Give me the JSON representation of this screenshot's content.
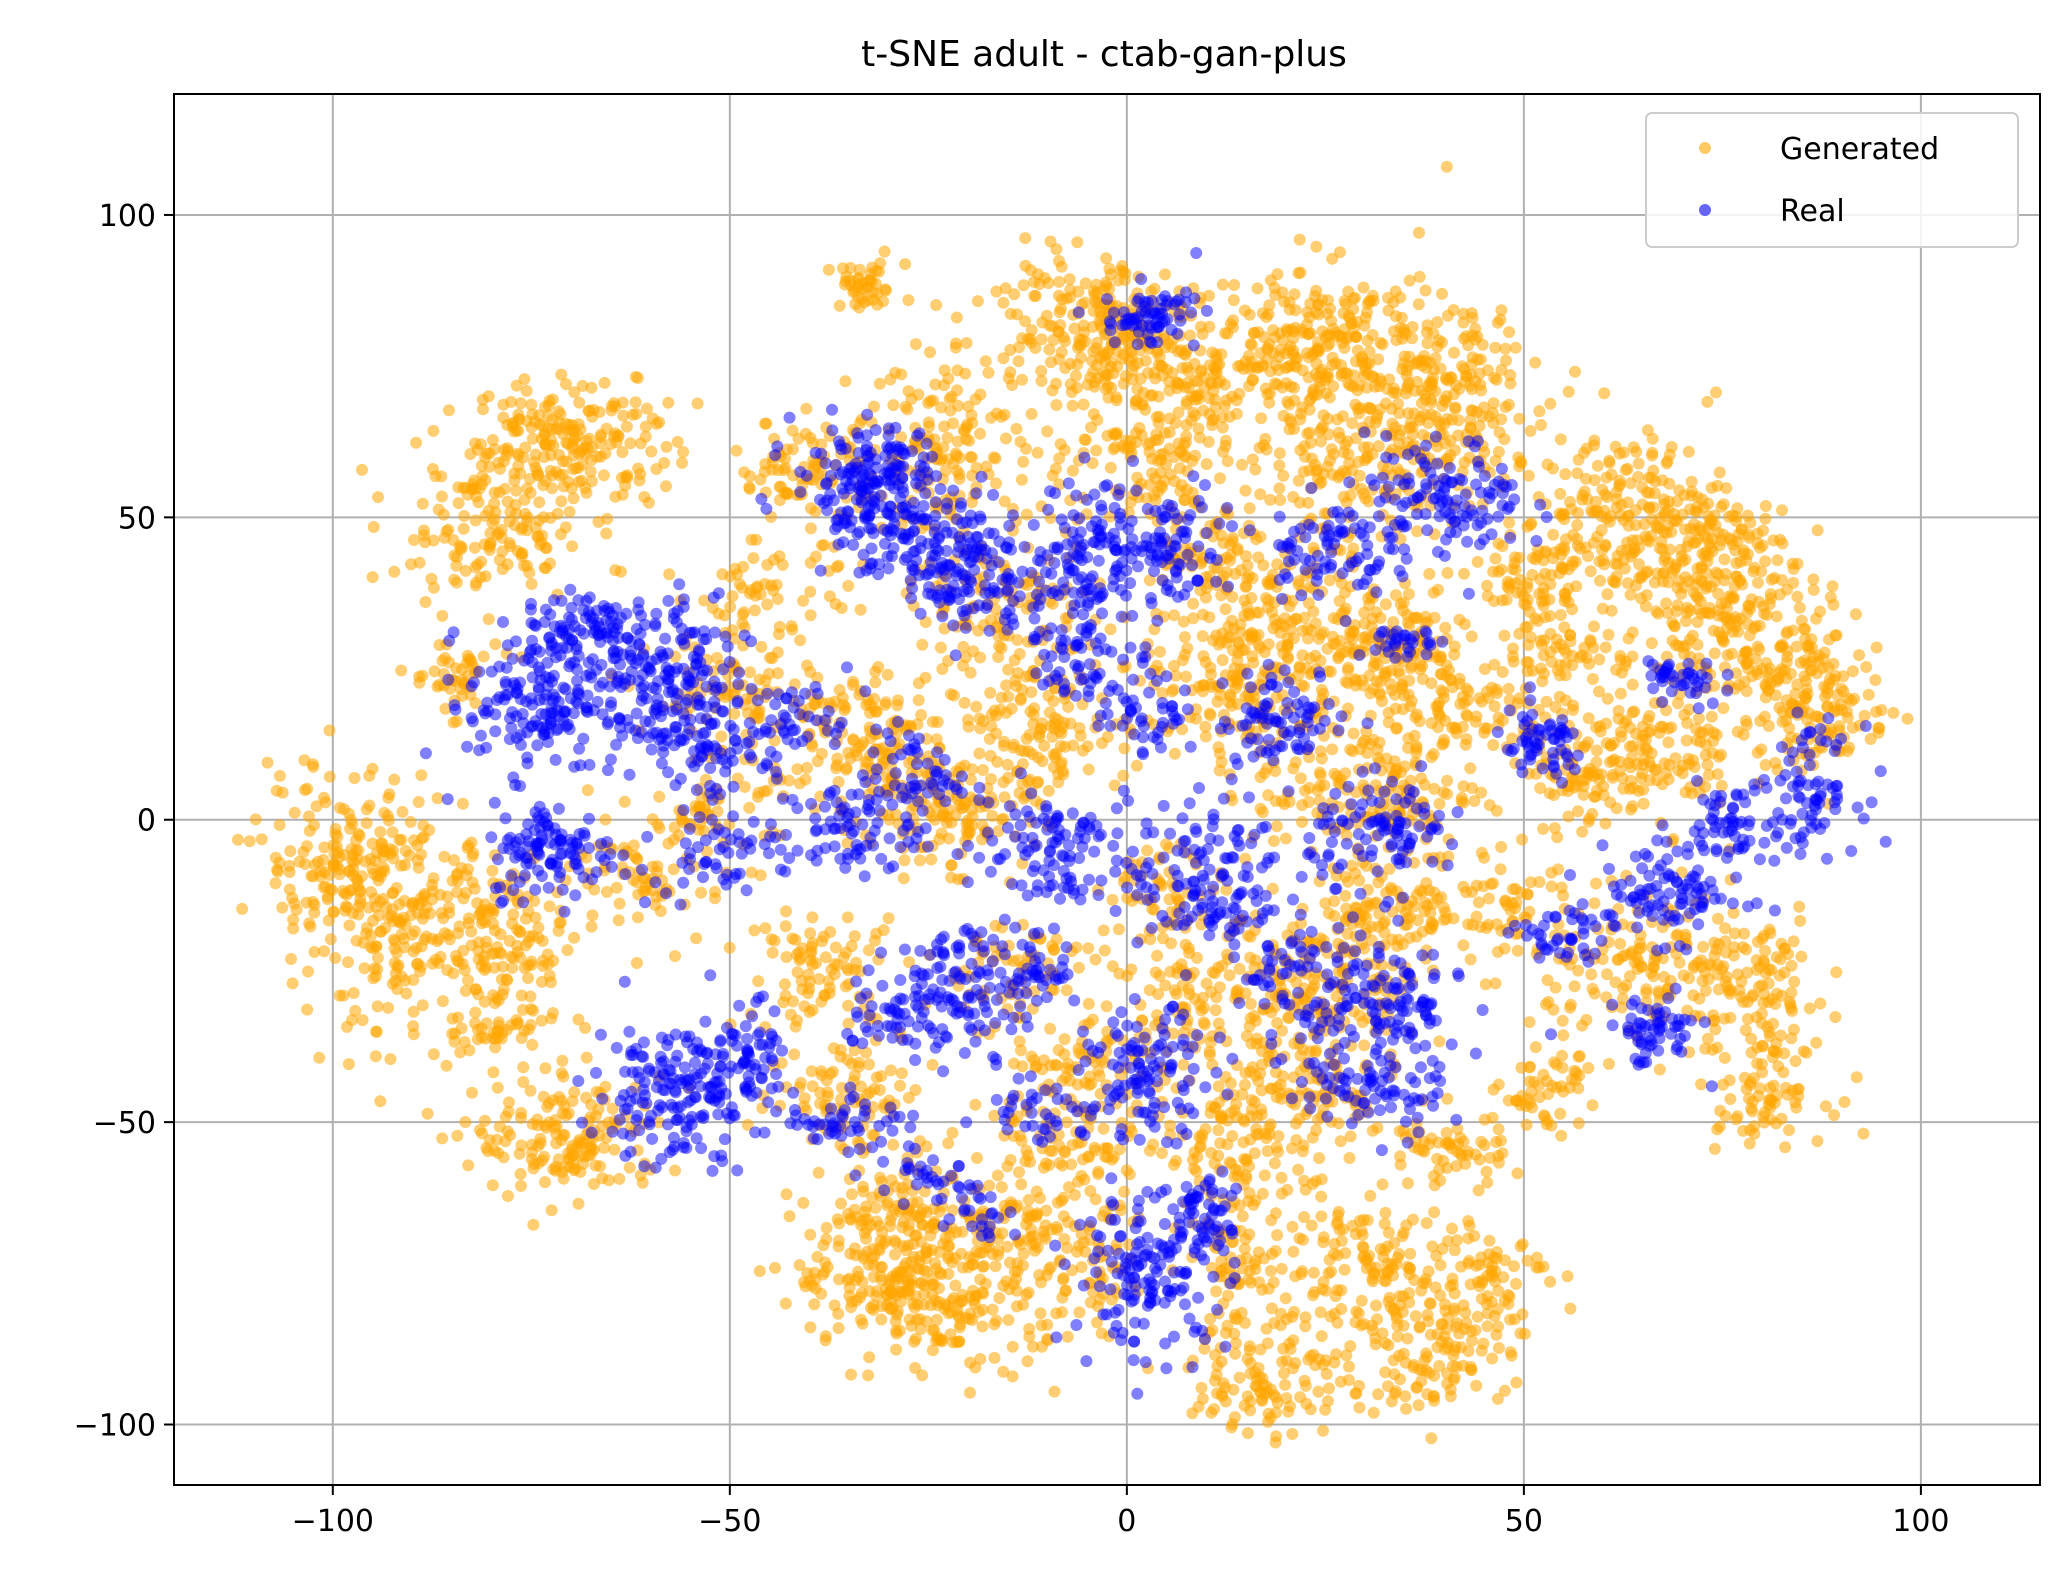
{
  "chart_data": {
    "type": "scatter",
    "title": "t-SNE adult - ctab-gan-plus",
    "xlabel": "",
    "ylabel": "",
    "xlim": [
      -120,
      115
    ],
    "ylim": [
      -110,
      120
    ],
    "xticks": [
      -100,
      -50,
      0,
      50,
      100
    ],
    "yticks": [
      -100,
      -50,
      0,
      50,
      100
    ],
    "xtick_labels": [
      "−100",
      "−50",
      "0",
      "50",
      "100"
    ],
    "ytick_labels": [
      "−100",
      "−50",
      "0",
      "50",
      "100"
    ],
    "grid": true,
    "legend_position": "upper right",
    "series": [
      {
        "name": "Generated",
        "color": "#FFA500",
        "clusters": [
          {
            "cx": -33,
            "cy": 88,
            "sx": 2.5,
            "sy": 2,
            "n": 45
          },
          {
            "cx": -70,
            "cy": 63,
            "sx": 6,
            "sy": 5,
            "n": 200
          },
          {
            "cx": -80,
            "cy": 48,
            "sx": 6,
            "sy": 6,
            "n": 150
          },
          {
            "cx": -85,
            "cy": 24,
            "sx": 3,
            "sy": 3,
            "n": 45
          },
          {
            "cx": -98,
            "cy": -6,
            "sx": 6,
            "sy": 7,
            "n": 160
          },
          {
            "cx": -92,
            "cy": -20,
            "sx": 6,
            "sy": 8,
            "n": 180
          },
          {
            "cx": -78,
            "cy": -20,
            "sx": 5,
            "sy": 8,
            "n": 140
          },
          {
            "cx": -80,
            "cy": -35,
            "sx": 3,
            "sy": 2,
            "n": 30
          },
          {
            "cx": -70,
            "cy": -53,
            "sx": 6,
            "sy": 5,
            "n": 160
          },
          {
            "cx": -40,
            "cy": 58,
            "sx": 5,
            "sy": 4,
            "n": 90
          },
          {
            "cx": -45,
            "cy": 38,
            "sx": 5,
            "sy": 4,
            "n": 60
          },
          {
            "cx": -50,
            "cy": 20,
            "sx": 5,
            "sy": 5,
            "n": 80
          },
          {
            "cx": -35,
            "cy": 15,
            "sx": 5,
            "sy": 6,
            "n": 100
          },
          {
            "cx": -22,
            "cy": 62,
            "sx": 6,
            "sy": 7,
            "n": 150
          },
          {
            "cx": -15,
            "cy": 35,
            "sx": 6,
            "sy": 6,
            "n": 120
          },
          {
            "cx": -12,
            "cy": 15,
            "sx": 6,
            "sy": 6,
            "n": 140
          },
          {
            "cx": -5,
            "cy": 82,
            "sx": 7,
            "sy": 6,
            "n": 220
          },
          {
            "cx": 10,
            "cy": 72,
            "sx": 8,
            "sy": 7,
            "n": 200
          },
          {
            "cx": 25,
            "cy": 78,
            "sx": 8,
            "sy": 7,
            "n": 230
          },
          {
            "cx": 40,
            "cy": 72,
            "sx": 6,
            "sy": 6,
            "n": 150
          },
          {
            "cx": 32,
            "cy": 60,
            "sx": 7,
            "sy": 6,
            "n": 180
          },
          {
            "cx": 20,
            "cy": 38,
            "sx": 6,
            "sy": 6,
            "n": 130
          },
          {
            "cx": 15,
            "cy": 22,
            "sx": 7,
            "sy": 6,
            "n": 180
          },
          {
            "cx": 32,
            "cy": 27,
            "sx": 5,
            "sy": 5,
            "n": 150
          },
          {
            "cx": 30,
            "cy": 5,
            "sx": 7,
            "sy": 6,
            "n": 170
          },
          {
            "cx": 42,
            "cy": 18,
            "sx": 5,
            "sy": 5,
            "n": 80
          },
          {
            "cx": 55,
            "cy": 28,
            "sx": 5,
            "sy": 6,
            "n": 90
          },
          {
            "cx": 62,
            "cy": 50,
            "sx": 7,
            "sy": 7,
            "n": 200
          },
          {
            "cx": 72,
            "cy": 42,
            "sx": 6,
            "sy": 8,
            "n": 200
          },
          {
            "cx": 80,
            "cy": 28,
            "sx": 6,
            "sy": 6,
            "n": 150
          },
          {
            "cx": 88,
            "cy": 18,
            "sx": 4,
            "sy": 5,
            "n": 100
          },
          {
            "cx": 65,
            "cy": 12,
            "sx": 6,
            "sy": 5,
            "n": 140
          },
          {
            "cx": 58,
            "cy": 5,
            "sx": 4,
            "sy": 4,
            "n": 60
          },
          {
            "cx": 65,
            "cy": -25,
            "sx": 6,
            "sy": 6,
            "n": 120
          },
          {
            "cx": 78,
            "cy": -28,
            "sx": 5,
            "sy": 7,
            "n": 130
          },
          {
            "cx": 80,
            "cy": -45,
            "sx": 4,
            "sy": 4,
            "n": 70
          },
          {
            "cx": 33,
            "cy": -15,
            "sx": 6,
            "sy": 5,
            "n": 120
          },
          {
            "cx": 25,
            "cy": -28,
            "sx": 6,
            "sy": 6,
            "n": 140
          },
          {
            "cx": 22,
            "cy": -45,
            "sx": 6,
            "sy": 6,
            "n": 120
          },
          {
            "cx": 40,
            "cy": -55,
            "sx": 4,
            "sy": 3,
            "n": 60
          },
          {
            "cx": 53,
            "cy": -45,
            "sx": 3,
            "sy": 3,
            "n": 50
          },
          {
            "cx": 10,
            "cy": -30,
            "sx": 6,
            "sy": 6,
            "n": 120
          },
          {
            "cx": 15,
            "cy": -55,
            "sx": 5,
            "sy": 5,
            "n": 90
          },
          {
            "cx": 5,
            "cy": -12,
            "sx": 4,
            "sy": 4,
            "n": 60
          },
          {
            "cx": -5,
            "cy": -40,
            "sx": 5,
            "sy": 5,
            "n": 80
          },
          {
            "cx": -8,
            "cy": -55,
            "sx": 6,
            "sy": 5,
            "n": 100
          },
          {
            "cx": -15,
            "cy": -25,
            "sx": 5,
            "sy": 5,
            "n": 70
          },
          {
            "cx": -30,
            "cy": 5,
            "sx": 5,
            "sy": 5,
            "n": 90
          },
          {
            "cx": -20,
            "cy": 0,
            "sx": 5,
            "sy": 4,
            "n": 80
          },
          {
            "cx": -38,
            "cy": -25,
            "sx": 5,
            "sy": 5,
            "n": 90
          },
          {
            "cx": -35,
            "cy": -45,
            "sx": 5,
            "sy": 5,
            "n": 90
          },
          {
            "cx": -30,
            "cy": -75,
            "sx": 6,
            "sy": 6,
            "n": 170
          },
          {
            "cx": -20,
            "cy": -80,
            "sx": 6,
            "sy": 6,
            "n": 150
          },
          {
            "cx": -28,
            "cy": -65,
            "sx": 5,
            "sy": 4,
            "n": 80
          },
          {
            "cx": -15,
            "cy": -68,
            "sx": 4,
            "sy": 4,
            "n": 60
          },
          {
            "cx": -5,
            "cy": -75,
            "sx": 3,
            "sy": 6,
            "n": 60
          },
          {
            "cx": 15,
            "cy": -75,
            "sx": 4,
            "sy": 5,
            "n": 70
          },
          {
            "cx": 18,
            "cy": -92,
            "sx": 5,
            "sy": 5,
            "n": 110
          },
          {
            "cx": 30,
            "cy": -75,
            "sx": 6,
            "sy": 6,
            "n": 130
          },
          {
            "cx": 38,
            "cy": -88,
            "sx": 5,
            "sy": 5,
            "n": 110
          },
          {
            "cx": 45,
            "cy": -75,
            "sx": 4,
            "sy": 5,
            "n": 80
          },
          {
            "cx": 10,
            "cy": 45,
            "sx": 4,
            "sy": 4,
            "n": 60
          },
          {
            "cx": 2,
            "cy": 58,
            "sx": 5,
            "sy": 5,
            "n": 90
          },
          {
            "cx": -60,
            "cy": -10,
            "sx": 5,
            "sy": 5,
            "n": 70
          },
          {
            "cx": -52,
            "cy": 2,
            "sx": 4,
            "sy": 4,
            "n": 60
          },
          {
            "cx": 48,
            "cy": -15,
            "sx": 4,
            "sy": 5,
            "n": 60
          },
          {
            "cx": 50,
            "cy": 40,
            "sx": 4,
            "sy": 4,
            "n": 60
          }
        ]
      },
      {
        "name": "Real",
        "color": "#0000FF",
        "clusters": [
          {
            "cx": 3,
            "cy": 83,
            "sx": 3,
            "sy": 2.5,
            "n": 70
          },
          {
            "cx": -32,
            "cy": 55,
            "sx": 5,
            "sy": 5,
            "n": 200
          },
          {
            "cx": -25,
            "cy": 45,
            "sx": 4,
            "sy": 4,
            "n": 90
          },
          {
            "cx": -18,
            "cy": 40,
            "sx": 4,
            "sy": 5,
            "n": 90
          },
          {
            "cx": -5,
            "cy": 45,
            "sx": 3,
            "sy": 6,
            "n": 100
          },
          {
            "cx": -5,
            "cy": 28,
            "sx": 4,
            "sy": 5,
            "n": 80
          },
          {
            "cx": 5,
            "cy": 45,
            "sx": 4,
            "sy": 5,
            "n": 90
          },
          {
            "cx": -60,
            "cy": 22,
            "sx": 6,
            "sy": 7,
            "n": 220
          },
          {
            "cx": -75,
            "cy": 20,
            "sx": 4,
            "sy": 6,
            "n": 140
          },
          {
            "cx": -68,
            "cy": 33,
            "sx": 4,
            "sy": 3,
            "n": 60
          },
          {
            "cx": -72,
            "cy": -5,
            "sx": 4,
            "sy": 4,
            "n": 110
          },
          {
            "cx": -52,
            "cy": 12,
            "sx": 5,
            "sy": 5,
            "n": 80
          },
          {
            "cx": -52,
            "cy": -5,
            "sx": 4,
            "sy": 3,
            "n": 50
          },
          {
            "cx": -40,
            "cy": 17,
            "sx": 3,
            "sy": 3,
            "n": 30
          },
          {
            "cx": -35,
            "cy": -2,
            "sx": 4,
            "sy": 4,
            "n": 70
          },
          {
            "cx": -27,
            "cy": 7,
            "sx": 3,
            "sy": 4,
            "n": 60
          },
          {
            "cx": -10,
            "cy": -5,
            "sx": 5,
            "sy": 6,
            "n": 110
          },
          {
            "cx": 10,
            "cy": -10,
            "sx": 5,
            "sy": 7,
            "n": 140
          },
          {
            "cx": 3,
            "cy": 17,
            "sx": 3,
            "sy": 3,
            "n": 40
          },
          {
            "cx": 20,
            "cy": 17,
            "sx": 4,
            "sy": 4,
            "n": 80
          },
          {
            "cx": 25,
            "cy": 45,
            "sx": 4,
            "sy": 4,
            "n": 80
          },
          {
            "cx": 40,
            "cy": 53,
            "sx": 5,
            "sy": 5,
            "n": 120
          },
          {
            "cx": 35,
            "cy": 29,
            "sx": 2,
            "sy": 2,
            "n": 30
          },
          {
            "cx": 33,
            "cy": -2,
            "sx": 5,
            "sy": 4,
            "n": 100
          },
          {
            "cx": 52,
            "cy": 12,
            "sx": 3,
            "sy": 3,
            "n": 60
          },
          {
            "cx": 70,
            "cy": 23,
            "sx": 2.5,
            "sy": 2.5,
            "n": 40
          },
          {
            "cx": 75,
            "cy": 0,
            "sx": 3,
            "sy": 3,
            "n": 50
          },
          {
            "cx": 86,
            "cy": 5,
            "sx": 3,
            "sy": 5,
            "n": 80
          },
          {
            "cx": 68,
            "cy": -12,
            "sx": 5,
            "sy": 4,
            "n": 100
          },
          {
            "cx": 55,
            "cy": -20,
            "sx": 3,
            "sy": 3,
            "n": 40
          },
          {
            "cx": 66,
            "cy": -35,
            "sx": 3,
            "sy": 3,
            "n": 60
          },
          {
            "cx": 32,
            "cy": -30,
            "sx": 5,
            "sy": 6,
            "n": 140
          },
          {
            "cx": 30,
            "cy": -45,
            "sx": 5,
            "sy": 4,
            "n": 80
          },
          {
            "cx": 20,
            "cy": -25,
            "sx": 3,
            "sy": 3,
            "n": 40
          },
          {
            "cx": 3,
            "cy": -42,
            "sx": 4,
            "sy": 5,
            "n": 110
          },
          {
            "cx": -10,
            "cy": -48,
            "sx": 4,
            "sy": 3,
            "n": 40
          },
          {
            "cx": -20,
            "cy": -28,
            "sx": 5,
            "sy": 5,
            "n": 120
          },
          {
            "cx": -30,
            "cy": -32,
            "sx": 3,
            "sy": 3,
            "n": 40
          },
          {
            "cx": -35,
            "cy": -50,
            "sx": 4,
            "sy": 3,
            "n": 50
          },
          {
            "cx": -57,
            "cy": -45,
            "sx": 5,
            "sy": 6,
            "n": 170
          },
          {
            "cx": -48,
            "cy": -40,
            "sx": 3,
            "sy": 5,
            "n": 60
          },
          {
            "cx": -25,
            "cy": -60,
            "sx": 3,
            "sy": 2,
            "n": 30
          },
          {
            "cx": 3,
            "cy": -75,
            "sx": 5,
            "sy": 6,
            "n": 150
          },
          {
            "cx": 10,
            "cy": -65,
            "sx": 3,
            "sy": 4,
            "n": 50
          },
          {
            "cx": -18,
            "cy": -65,
            "sx": 2,
            "sy": 2,
            "n": 20
          },
          {
            "cx": -12,
            "cy": -25,
            "sx": 3,
            "sy": 3,
            "n": 30
          }
        ]
      }
    ]
  }
}
